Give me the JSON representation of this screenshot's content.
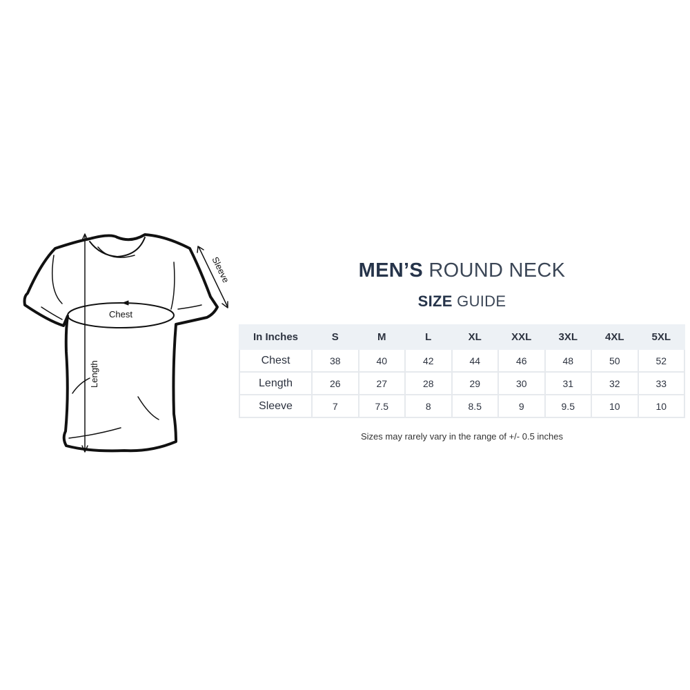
{
  "title": {
    "bold": "MEN’S",
    "light": "ROUND NECK"
  },
  "subtitle": {
    "bold": "SIZE",
    "light": "GUIDE"
  },
  "diagram": {
    "chest": "Chest",
    "length": "Length",
    "sleeve": "Sleeve"
  },
  "table": {
    "headers": [
      "In Inches",
      "S",
      "M",
      "L",
      "XL",
      "XXL",
      "3XL",
      "4XL",
      "5XL"
    ],
    "rows": [
      {
        "label": "Chest",
        "values": [
          "38",
          "40",
          "42",
          "44",
          "46",
          "48",
          "50",
          "52"
        ]
      },
      {
        "label": "Length",
        "values": [
          "26",
          "27",
          "28",
          "29",
          "30",
          "31",
          "32",
          "33"
        ]
      },
      {
        "label": "Sleeve",
        "values": [
          "7",
          "7.5",
          "8",
          "8.5",
          "9",
          "9.5",
          "10",
          "10"
        ]
      }
    ]
  },
  "note": "Sizes may rarely vary in the range of +/- 0.5 inches",
  "colors": {
    "title": "#26344a",
    "header_bg": "#edf1f5",
    "border": "#e6e9ed"
  }
}
